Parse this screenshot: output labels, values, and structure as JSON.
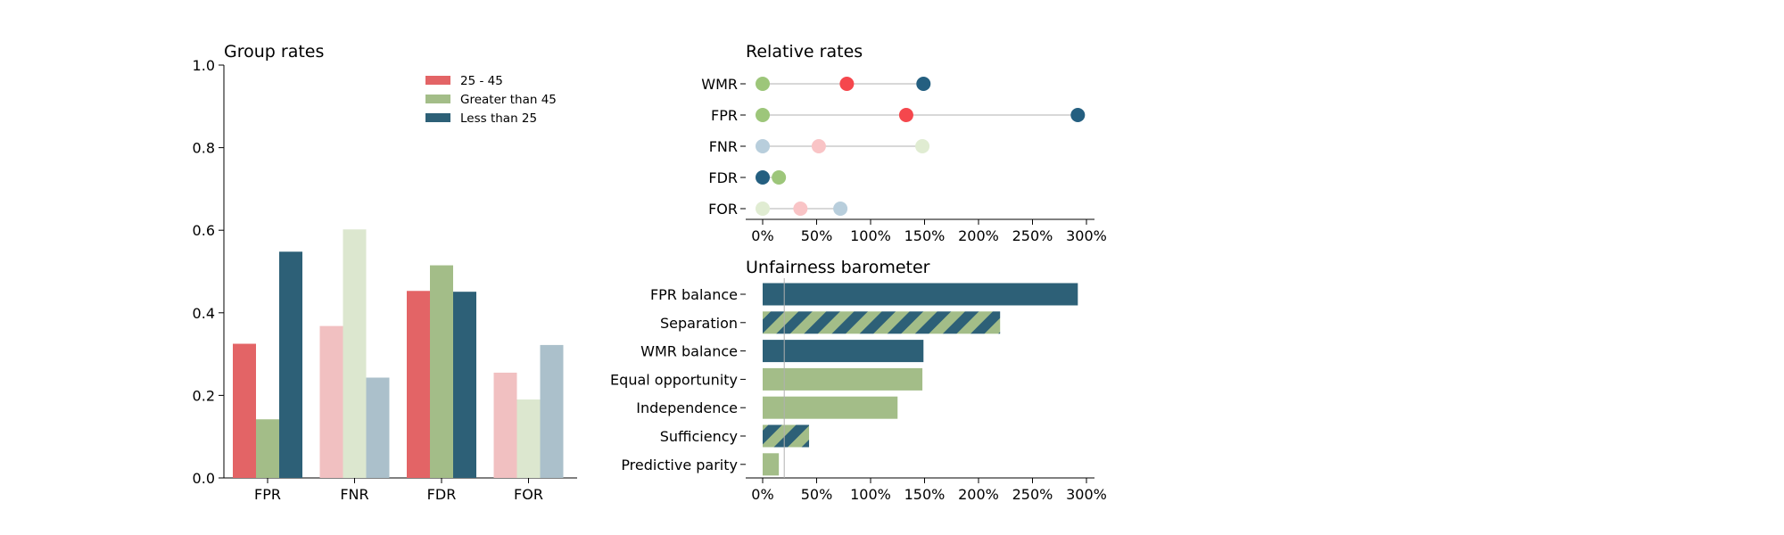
{
  "colors": {
    "red": "#e36466",
    "red_light": "#f1c0c1",
    "green": "#a3bd88",
    "green_light": "#dce7cf",
    "blue": "#2d6077",
    "blue_light": "#abc0cb",
    "dot_red": "#f5474d",
    "dot_green": "#9dc67a",
    "dot_blue": "#245f80",
    "dot_red_light": "#f9c4c6",
    "dot_green_light": "#e0ecd2",
    "dot_blue_light": "#b8cedc",
    "connector": "#cccccc",
    "reference_line": "#b0b0b0"
  },
  "chart_data": [
    {
      "type": "bar",
      "title": "Group rates",
      "xlabel": "",
      "ylabel": "",
      "ylim": [
        0,
        1.0
      ],
      "yticks": [
        "0.0",
        "0.2",
        "0.4",
        "0.6",
        "0.8",
        "1.0"
      ],
      "categories": [
        "FPR",
        "FNR",
        "FDR",
        "FOR"
      ],
      "legend_position": "top-right",
      "series": [
        {
          "name": "25 - 45",
          "color": "red",
          "values": [
            0.325,
            0.368,
            0.453,
            0.255
          ]
        },
        {
          "name": "Greater than 45",
          "color": "green",
          "values": [
            0.142,
            0.602,
            0.515,
            0.19
          ]
        },
        {
          "name": "Less than 25",
          "color": "blue",
          "values": [
            0.548,
            0.243,
            0.451,
            0.322
          ]
        }
      ],
      "faded_categories": [
        "FNR",
        "FOR"
      ]
    },
    {
      "type": "scatter",
      "title": "Relative rates",
      "xlabel": "",
      "ylabel": "",
      "xlim": [
        -0.15,
        3.0
      ],
      "xticks": [
        "0%",
        "50%",
        "100%",
        "150%",
        "200%",
        "250%",
        "300%"
      ],
      "categories": [
        "WMR",
        "FPR",
        "FNR",
        "FDR",
        "FOR"
      ],
      "series": [
        {
          "name": "25 - 45",
          "values": [
            0.78,
            1.33,
            0.52,
            null,
            0.35
          ]
        },
        {
          "name": "Greater than 45",
          "values": [
            0.0,
            0.0,
            1.48,
            0.15,
            0.0
          ]
        },
        {
          "name": "Less than 25",
          "values": [
            1.49,
            2.92,
            0.0,
            0.0,
            0.72
          ]
        }
      ],
      "faded_categories": [
        "FNR",
        "FOR"
      ]
    },
    {
      "type": "bar",
      "orientation": "horizontal",
      "title": "Unfairness barometer",
      "xlabel": "",
      "ylabel": "",
      "xlim": [
        -0.15,
        3.0
      ],
      "xticks": [
        "0%",
        "50%",
        "100%",
        "150%",
        "200%",
        "250%",
        "300%"
      ],
      "reference_value": 0.2,
      "categories": [
        "FPR balance",
        "Separation",
        "WMR balance",
        "Equal opportunity",
        "Independence",
        "Sufficiency",
        "Predictive parity"
      ],
      "bars": [
        {
          "label": "FPR balance",
          "value": 2.92,
          "fill": "blue"
        },
        {
          "label": "Separation",
          "value": 2.2,
          "fill": "striped"
        },
        {
          "label": "WMR balance",
          "value": 1.49,
          "fill": "blue"
        },
        {
          "label": "Equal opportunity",
          "value": 1.48,
          "fill": "green"
        },
        {
          "label": "Independence",
          "value": 1.25,
          "fill": "green"
        },
        {
          "label": "Sufficiency",
          "value": 0.43,
          "fill": "striped"
        },
        {
          "label": "Predictive parity",
          "value": 0.15,
          "fill": "green"
        }
      ]
    }
  ]
}
